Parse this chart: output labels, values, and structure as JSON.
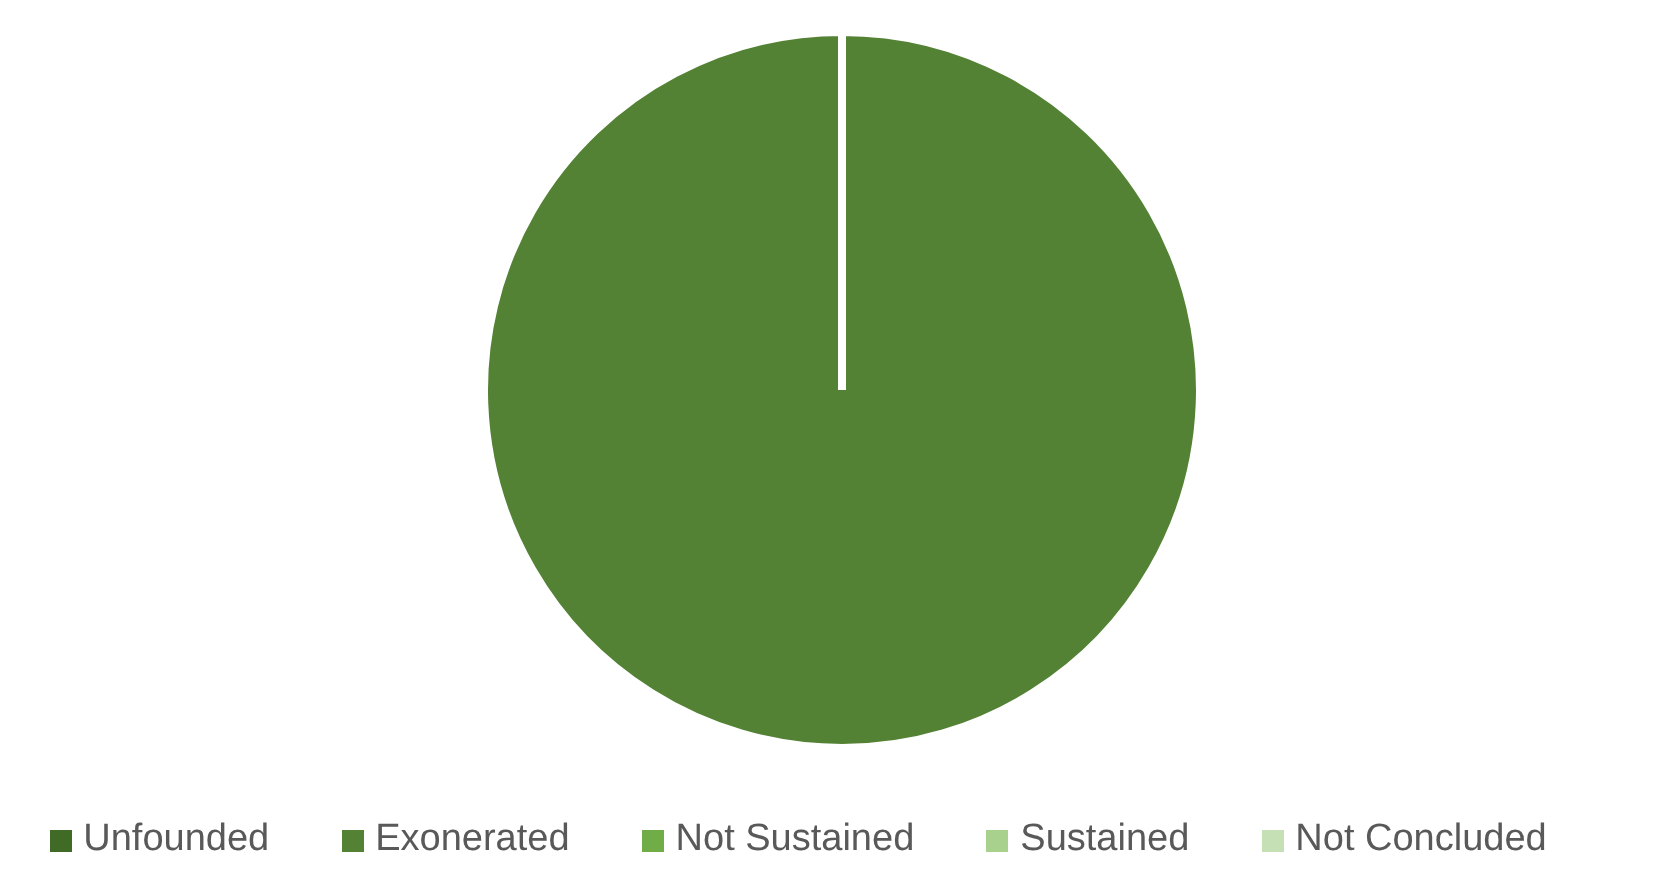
{
  "chart_data": {
    "type": "pie",
    "categories": [
      "Unfounded",
      "Exonerated",
      "Not Sustained",
      "Sustained",
      "Not Concluded"
    ],
    "values": [
      0,
      100,
      0,
      0,
      0
    ],
    "colors": [
      "#3f6b26",
      "#548235",
      "#70ad47",
      "#a9d18e",
      "#c5e0b4"
    ],
    "legend": "bottom"
  }
}
